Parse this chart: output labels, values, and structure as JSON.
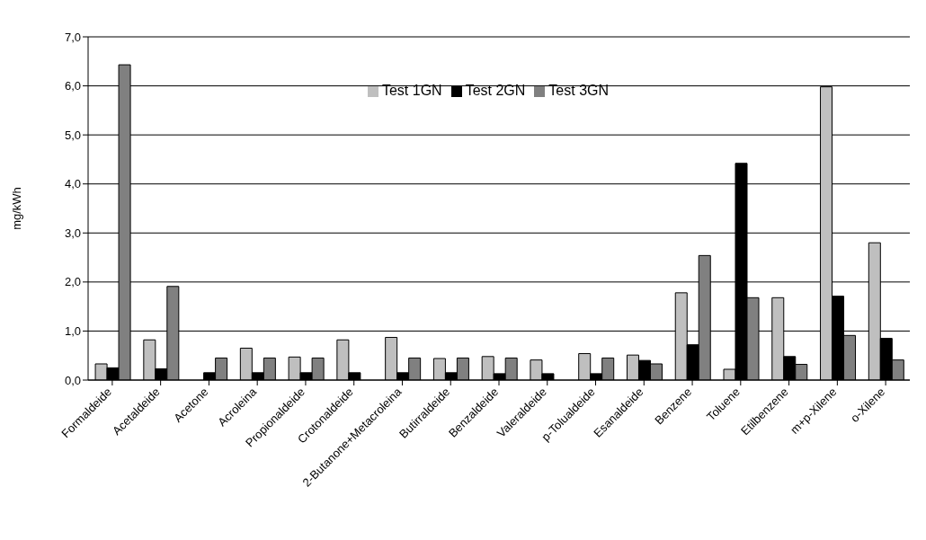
{
  "chart_data": {
    "type": "bar",
    "ylabel": "mg/kWh",
    "categories": [
      "Formaldeide",
      "Acetaldeide",
      "Acetone",
      "Acroleina",
      "Propionaldeide",
      "Crotonaldeide",
      "2-Butanone+Metacroleina",
      "Butirraldeide",
      "Benzaldeide",
      "Valeraldeide",
      "p-Tolualdeide",
      "Esanaldeide",
      "Benzene",
      "Toluene",
      "Etilbenzene",
      "m+p-Xilene",
      "o-Xilene"
    ],
    "series": [
      {
        "name": "Test 1GN",
        "color": "#bfbfbf",
        "values": [
          0.33,
          0.82,
          null,
          0.65,
          0.47,
          0.82,
          0.87,
          0.44,
          0.48,
          0.41,
          0.54,
          0.51,
          1.78,
          0.22,
          1.68,
          5.98,
          2.8
        ]
      },
      {
        "name": "Test 2GN",
        "color": "#000000",
        "values": [
          0.25,
          0.23,
          0.15,
          0.15,
          0.15,
          0.15,
          0.15,
          0.15,
          0.13,
          0.13,
          0.13,
          0.4,
          0.72,
          4.42,
          0.48,
          1.71,
          0.85
        ]
      },
      {
        "name": "Test 3GN",
        "color": "#808080",
        "values": [
          6.43,
          1.91,
          0.45,
          0.45,
          0.45,
          null,
          0.45,
          0.45,
          0.45,
          null,
          0.45,
          0.33,
          2.54,
          1.68,
          0.32,
          0.91,
          0.41
        ]
      }
    ],
    "ylim": [
      0,
      7
    ],
    "yticks": [
      {
        "value": 0,
        "label": "0,0"
      },
      {
        "value": 1,
        "label": "1,0"
      },
      {
        "value": 2,
        "label": "2,0"
      },
      {
        "value": 3,
        "label": "3,0"
      },
      {
        "value": 4,
        "label": "4,0"
      },
      {
        "value": 5,
        "label": "5,0"
      },
      {
        "value": 6,
        "label": "6,0"
      },
      {
        "value": 7,
        "label": "7,0"
      }
    ],
    "grid": "y",
    "legend": "top"
  }
}
